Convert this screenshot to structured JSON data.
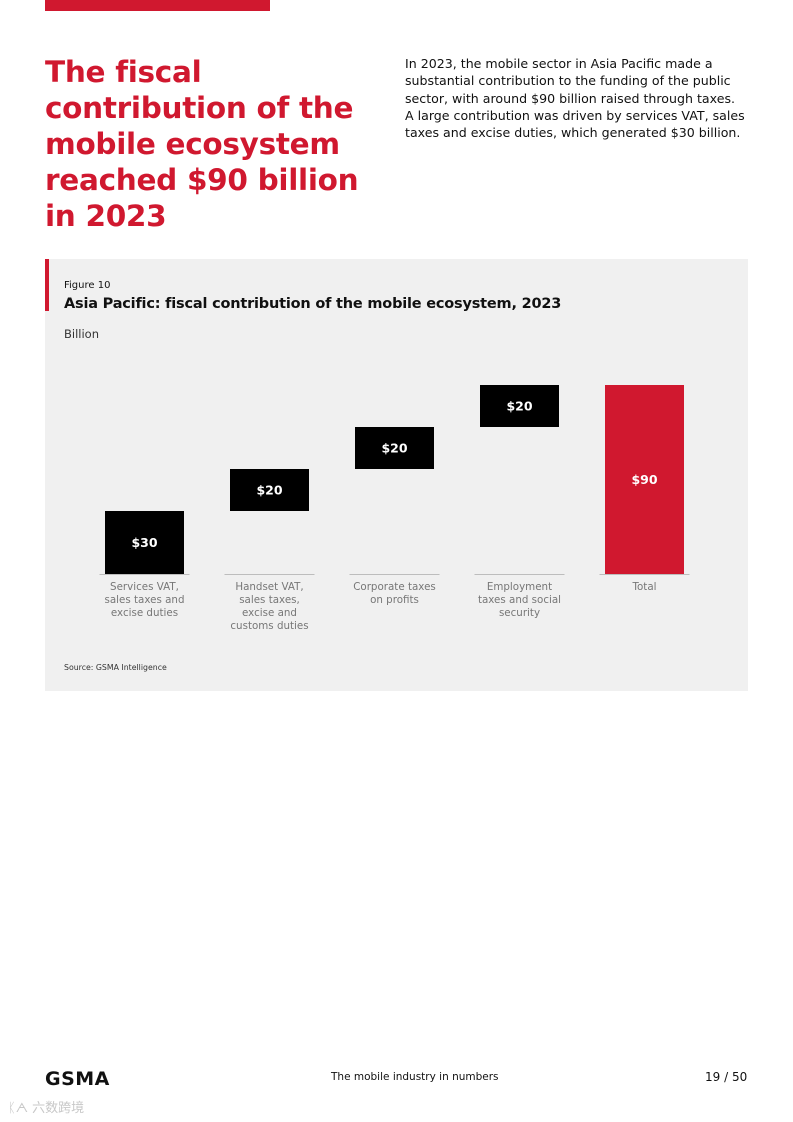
{
  "header": {
    "headline": "The fiscal contribution of the mobile ecosystem reached $90 billion in 2023",
    "intro": "In 2023, the mobile sector in Asia Pacific made a substantial contribution to the funding of the public sector, with around $90 billion raised through taxes. A large contribution was driven by services VAT, sales taxes and excise duties, which generated $30 billion."
  },
  "figure": {
    "label": "Figure 10",
    "title": "Asia Pacific: fiscal contribution of the mobile ecosystem, 2023",
    "unit": "Billion",
    "source": "Source: GSMA Intelligence"
  },
  "chart_data": {
    "type": "bar",
    "subtype": "waterfall",
    "title": "Asia Pacific: fiscal contribution of the mobile ecosystem, 2023",
    "ylabel": "Billion",
    "categories": [
      [
        "Services VAT,",
        "sales taxes and",
        "excise duties"
      ],
      [
        "Handset VAT,",
        "sales taxes,",
        "excise and",
        "customs duties"
      ],
      [
        "Corporate taxes",
        "on profits"
      ],
      [
        "Employment",
        "taxes and social",
        "security"
      ],
      [
        "Total"
      ]
    ],
    "values": [
      30,
      20,
      20,
      20,
      90
    ],
    "value_labels": [
      "$30",
      "$20",
      "$20",
      "$20",
      "$90"
    ],
    "is_total": [
      false,
      false,
      false,
      false,
      true
    ],
    "ylim": [
      0,
      90
    ],
    "grid": false,
    "colors": {
      "bar": "#000000",
      "total": "#d0182f",
      "label": "#ffffff",
      "category": "#777777"
    }
  },
  "footer": {
    "logo": "GSMA",
    "center": "The mobile industry in numbers",
    "page": "19 / 50"
  },
  "watermark": "ᛕᗅ 六数跨境"
}
